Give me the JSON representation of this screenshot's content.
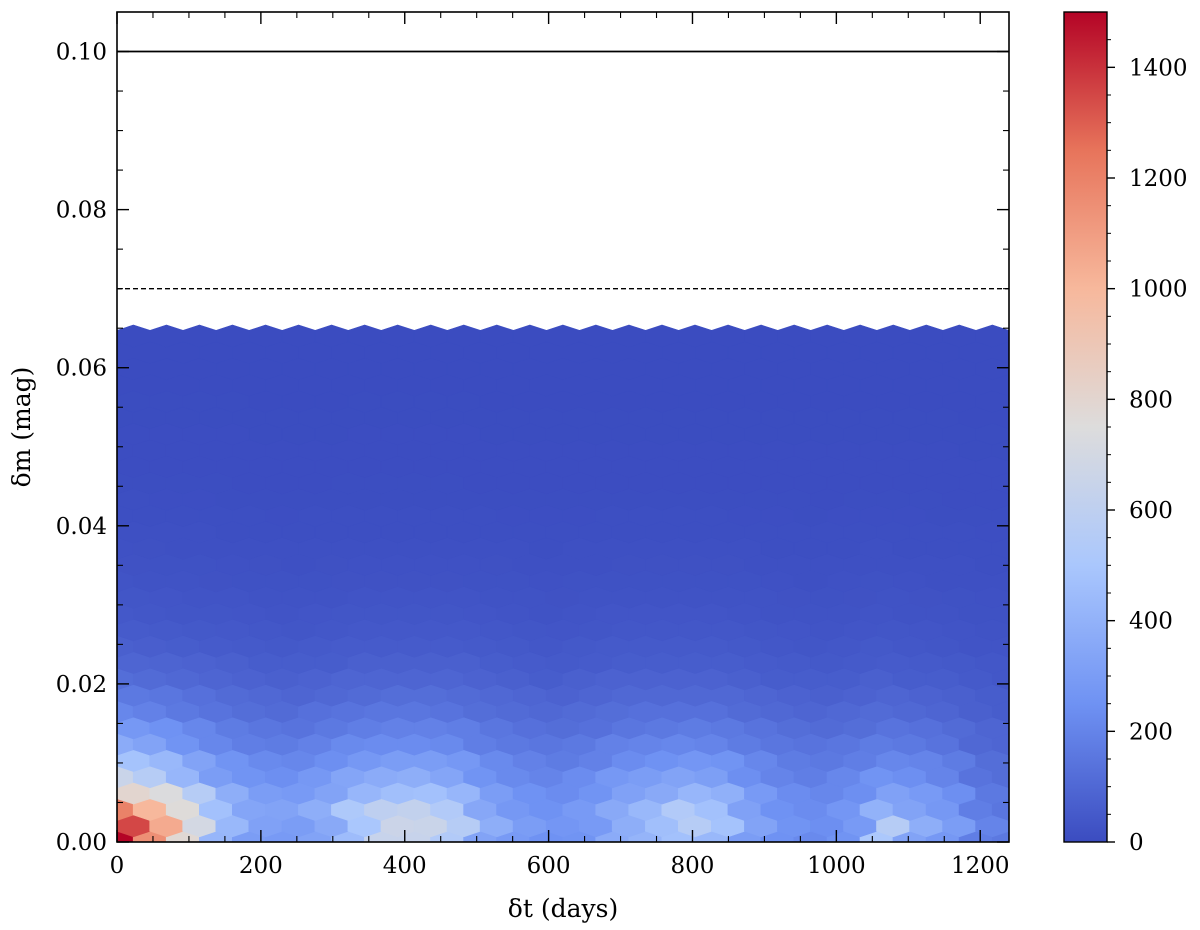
{
  "chart_data": {
    "type": "heatmap",
    "subtype": "hexbin",
    "title": "",
    "xlabel": "δt (days)",
    "ylabel": "δm (mag)",
    "xlim": [
      0,
      1240
    ],
    "ylim": [
      0,
      0.105
    ],
    "x_ticks": [
      0,
      200,
      400,
      600,
      800,
      1000,
      1200
    ],
    "x_tick_labels": [
      "0",
      "200",
      "400",
      "600",
      "800",
      "1000",
      "1200"
    ],
    "y_ticks": [
      0.0,
      0.02,
      0.04,
      0.06,
      0.08,
      0.1
    ],
    "y_tick_labels": [
      "0.00",
      "0.02",
      "0.04",
      "0.06",
      "0.08",
      "0.10"
    ],
    "reference_lines": [
      {
        "y": 0.1,
        "style": "solid",
        "color": "#000000"
      },
      {
        "y": 0.07,
        "style": "dashed",
        "color": "#000000"
      }
    ],
    "hexbin": {
      "x_extent": [
        0,
        1240
      ],
      "y_extent": [
        0,
        0.064
      ],
      "columns": 28,
      "rows": 32,
      "counts_min": 0,
      "counts_max": 1500,
      "grid_estimate": {
        "rows_bottom_to_top": [
          "1500 1150 780 420 300 290 330 450 640 640 540 330 290 250 260 370 410 470 430 300 250 220 260 510 330 280 180 160",
          "1350 1050 700 430 320 300 360 500 660 650 560 380 300 270 290 380 460 560 480 330 260 240 290 560 380 300 200 170",
          "1200 1000 760 470 340 330 380 520 600 620 540 350 280 250 290 360 430 540 470 320 250 230 270 400 330 280 180 150",
          "800 740 560 380 300 290 330 420 460 470 420 300 250 230 260 320 360 420 390 290 230 210 240 320 290 240 160 130",
          "650 560 420 300 260 240 280 340 370 380 340 260 220 200 230 280 300 330 310 240 200 180 210 260 240 200 140 120",
          "480 430 330 260 220 210 240 280 300 300 280 220 190 170 190 230 250 270 260 210 170 160 180 210 200 170 120 100",
          "370 330 260 210 180 170 190 220 230 230 220 180 160 150 160 190 200 210 200 170 150 140 150 170 160 140 100 90",
          "280 250 210 170 150 140 160 180 190 190 180 150 130 120 130 150 160 170 160 140 120 110 120 140 130 110 90 80",
          "210 190 160 140 120 110 130 140 150 150 140 120 110 100 110 120 130 130 130 110 100 90 100 110 100 90 70 60",
          "160 150 130 110 100 90 100 110 120 120 110 100 90 80 90 100 100 100 100 90 80 70 80 90 80 70 60 50",
          "120 110 100 90 80 70 80 90 90 90 90 80 70 60 70 80 80 80 80 70 60 60 60 70 60 60 50 40",
          "90 85 80 70 60 60 60 70 70 70 70 60 55 50 55 60 60 60 60 55 50 45 50 55 50 45 40 35",
          "70 65 60 55 50 45 50 55 55 55 55 50 45 40 45 50 50 50 50 45 40 35 40 45 40 35 30 30",
          "55 50 45 42 40 35 40 42 42 42 42 40 35 32 35 40 40 40 40 35 32 30 32 35 32 30 25 25",
          "42 40 36 34 32 30 32 34 34 34 34 32 28 26 28 32 32 32 32 28 26 24 26 28 26 24 20 20",
          "34 32 30 28 26 24 26 28 28 28 28 26 24 22 24 26 26 26 26 24 22 20 22 24 22 20 18 16",
          "28 26 24 22 21 20 21 22 22 22 22 21 20 18 20 21 21 21 21 20 18 16 18 20 18 16 14 14",
          "22 21 20 18 17 16 17 18 18 18 18 17 16 15 16 17 17 17 17 16 15 14 15 16 15 14 12 12",
          "18 17 16 15 14 13 14 15 15 15 15 14 13 12 13 14 14 14 14 13 12 11 12 13 12 11 10 10",
          "14 13 13 12 11 10 11 12 12 12 12 11 10 10 10 11 11 11 11 10 10 9 10 10 10 9 8 8",
          "11 10 10 9 9 8 9 9 9 9 9 9 8 8 8 9 9 9 9 8 8 7 8 8 8 7 6 6",
          "9 8 8 7 7 6 7 7 7 7 7 7 6 6 6 7 7 7 7 6 6 5 6 6 6 5 5 5",
          "7 6 6 6 5 5 5 6 6 6 6 5 5 5 5 5 5 5 5 5 5 4 5 5 5 4 4 4",
          "5 5 5 4 4 4 4 5 5 5 5 4 4 4 4 4 4 4 4 4 4 3 4 4 4 3 3 3",
          "4 4 4 3 3 3 3 4 4 4 4 3 3 3 3 3 3 3 3 3 3 3 3 3 3 3 2 2",
          "3 3 3 3 2 2 2 3 3 3 3 2 2 2 2 2 2 2 2 2 2 2 2 2 2 2 2 2",
          "2 2 2 2 2 2 2 2 2 2 2 2 2 2 2 2 2 2 2 2 2 2 2 2 2 2 1 1",
          "2 2 2 2 1 1 1 2 2 2 2 1 1 1 1 1 1 1 1 1 1 1 1 1 1 1 1 1",
          "1 1 1 1 1 1 1 1 1 1 1 1 1 1 1 1 1 1 1 1 1 1 1 1 1 1 1 1",
          "1 1 1 1 1 1 1 1 1 1 1 1 1 1 1 1 1 1 1 1 1 1 1 1 1 1 1 1",
          "1 1 1 1 1 1 1 1 1 1 1 1 1 1 1 1 1 1 1 1 1 1 1 1 1 1 1 1",
          "0 0 0 0 0 0 0 0 0 0 0 0 0 0 0 0 0 0 0 0 0 0 0 0 0 0 0 0"
        ]
      }
    },
    "colorbar": {
      "colormap": "coolwarm",
      "range": [
        0,
        1500
      ],
      "ticks": [
        0,
        200,
        400,
        600,
        800,
        1000,
        1200,
        1400
      ],
      "tick_labels": [
        "0",
        "200",
        "400",
        "600",
        "800",
        "1000",
        "1200",
        "1400"
      ],
      "colors": [
        "#3b4cc0",
        "#6f92f3",
        "#aac7fd",
        "#dddcdc",
        "#f7b89c",
        "#e7745b",
        "#b40426"
      ]
    },
    "grid": false,
    "legend": false
  }
}
